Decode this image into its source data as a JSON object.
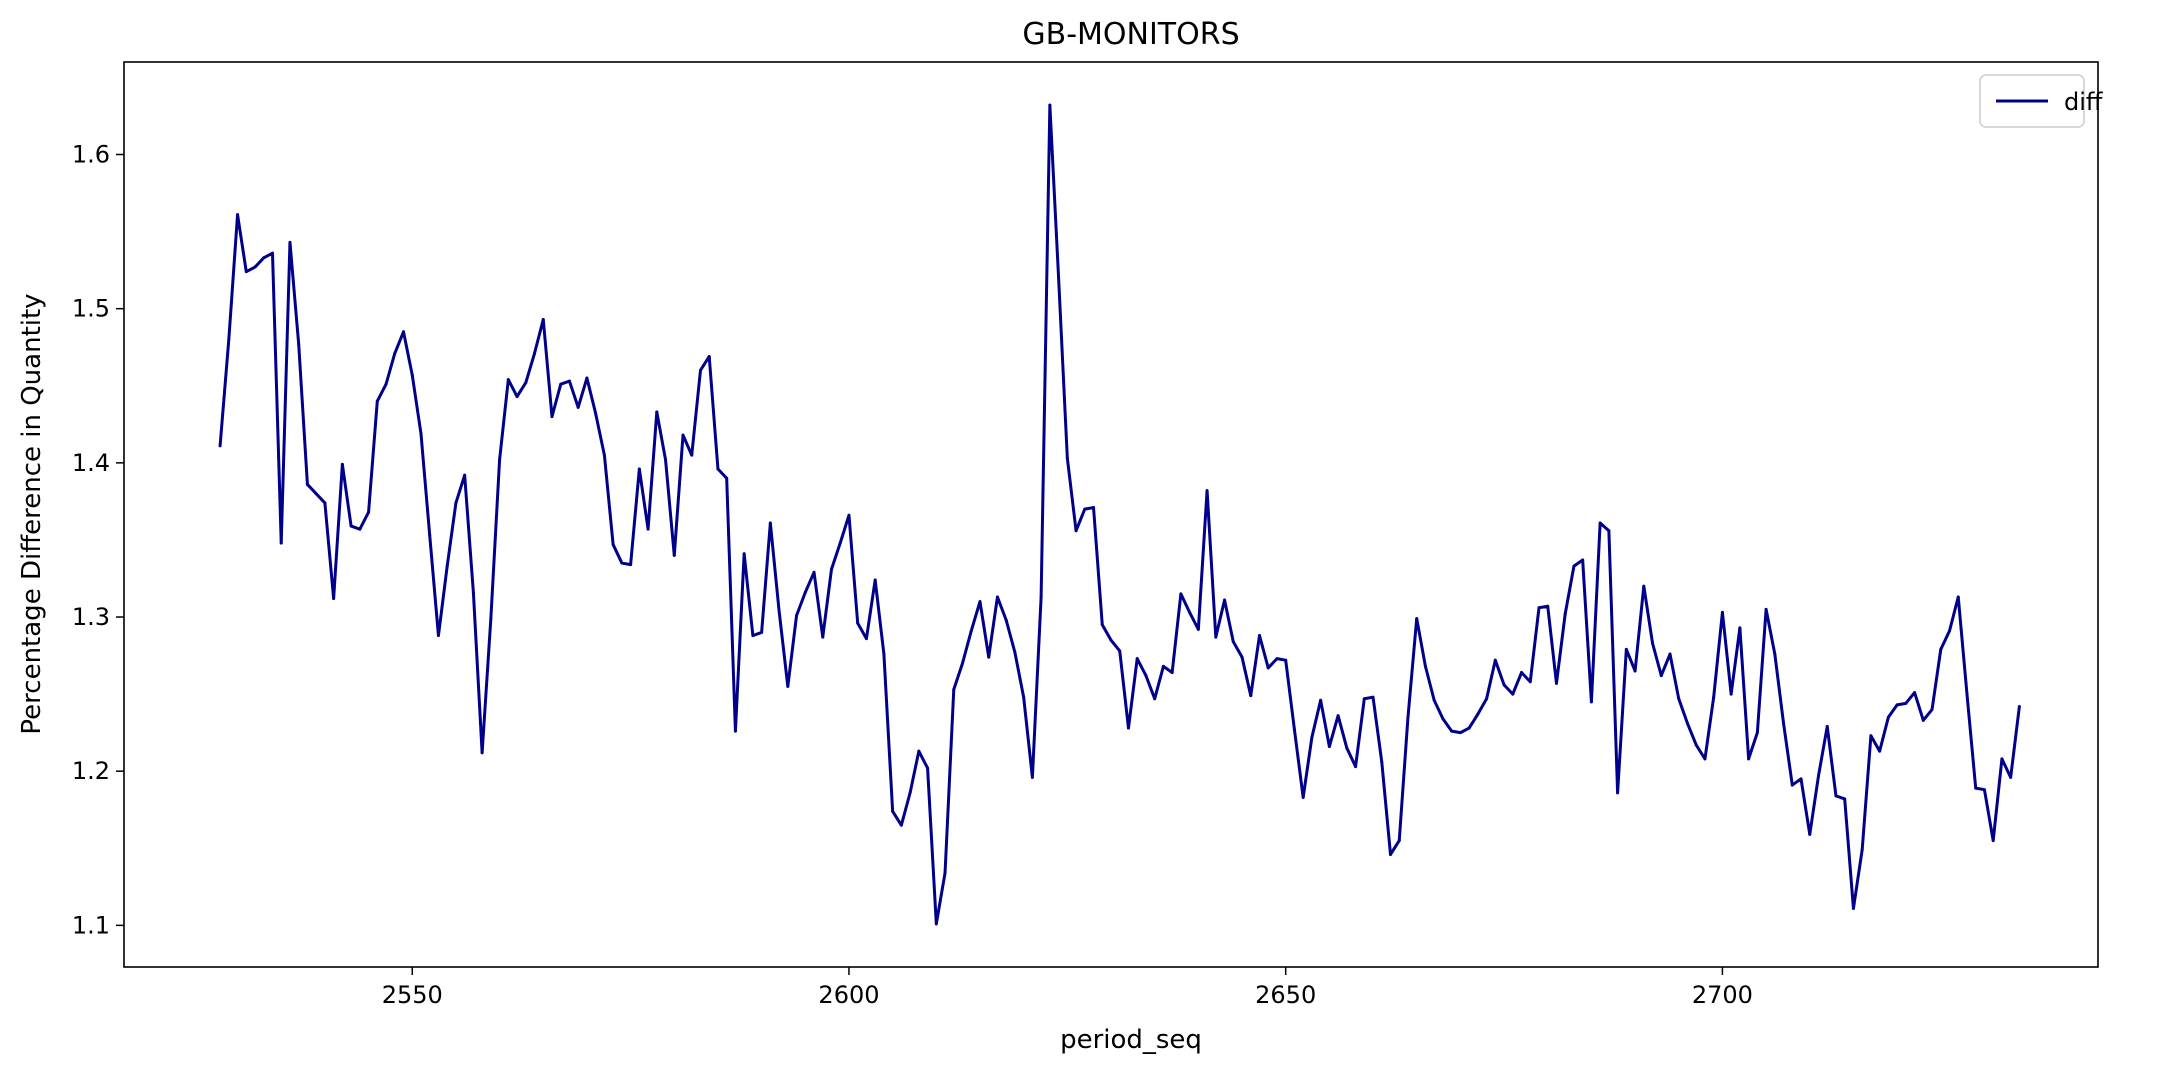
{
  "chart_data": {
    "type": "line",
    "title": "GB-MONITORS",
    "xlabel": "period_seq",
    "ylabel": "Percentage Difference in Quantity",
    "xlim": [
      2517,
      2743
    ],
    "ylim": [
      1.073,
      1.66
    ],
    "xticks": [
      2550,
      2600,
      2650,
      2700
    ],
    "yticks": [
      1.1,
      1.2,
      1.3,
      1.4,
      1.5,
      1.6
    ],
    "grid": false,
    "legend_position": "upper right",
    "series": [
      {
        "name": "diff",
        "color": "#00008b",
        "x_start": 2528,
        "x_step": 1,
        "values": [
          1.411,
          1.48,
          1.561,
          1.524,
          1.527,
          1.533,
          1.536,
          1.348,
          1.543,
          1.477,
          1.386,
          1.38,
          1.374,
          1.312,
          1.399,
          1.359,
          1.357,
          1.368,
          1.44,
          1.451,
          1.471,
          1.485,
          1.457,
          1.419,
          1.353,
          1.288,
          1.333,
          1.374,
          1.392,
          1.316,
          1.212,
          1.299,
          1.402,
          1.454,
          1.443,
          1.452,
          1.471,
          1.493,
          1.43,
          1.451,
          1.453,
          1.436,
          1.455,
          1.432,
          1.405,
          1.347,
          1.335,
          1.334,
          1.396,
          1.357,
          1.433,
          1.402,
          1.34,
          1.418,
          1.405,
          1.46,
          1.469,
          1.396,
          1.39,
          1.226,
          1.341,
          1.288,
          1.29,
          1.361,
          1.304,
          1.255,
          1.301,
          1.316,
          1.329,
          1.287,
          1.331,
          1.348,
          1.366,
          1.296,
          1.286,
          1.324,
          1.276,
          1.174,
          1.165,
          1.186,
          1.213,
          1.202,
          1.101,
          1.134,
          1.253,
          1.27,
          1.291,
          1.31,
          1.274,
          1.313,
          1.298,
          1.277,
          1.248,
          1.196,
          1.313,
          1.632,
          1.52,
          1.403,
          1.356,
          1.37,
          1.371,
          1.295,
          1.285,
          1.278,
          1.228,
          1.273,
          1.262,
          1.247,
          1.268,
          1.264,
          1.315,
          1.303,
          1.292,
          1.382,
          1.287,
          1.311,
          1.284,
          1.274,
          1.249,
          1.288,
          1.267,
          1.273,
          1.272,
          1.227,
          1.183,
          1.222,
          1.246,
          1.216,
          1.236,
          1.215,
          1.203,
          1.247,
          1.248,
          1.206,
          1.146,
          1.155,
          1.235,
          1.299,
          1.268,
          1.246,
          1.234,
          1.226,
          1.225,
          1.228,
          1.237,
          1.247,
          1.272,
          1.256,
          1.25,
          1.264,
          1.258,
          1.306,
          1.307,
          1.257,
          1.302,
          1.333,
          1.337,
          1.245,
          1.361,
          1.356,
          1.186,
          1.279,
          1.265,
          1.32,
          1.283,
          1.262,
          1.276,
          1.247,
          1.231,
          1.217,
          1.208,
          1.248,
          1.303,
          1.25,
          1.293,
          1.208,
          1.225,
          1.305,
          1.276,
          1.231,
          1.191,
          1.195,
          1.159,
          1.197,
          1.229,
          1.184,
          1.182,
          1.111,
          1.149,
          1.223,
          1.213,
          1.235,
          1.243,
          1.244,
          1.251,
          1.233,
          1.24,
          1.279,
          1.291,
          1.313,
          1.25,
          1.189,
          1.188,
          1.155,
          1.208,
          1.196,
          1.242
        ]
      }
    ]
  }
}
